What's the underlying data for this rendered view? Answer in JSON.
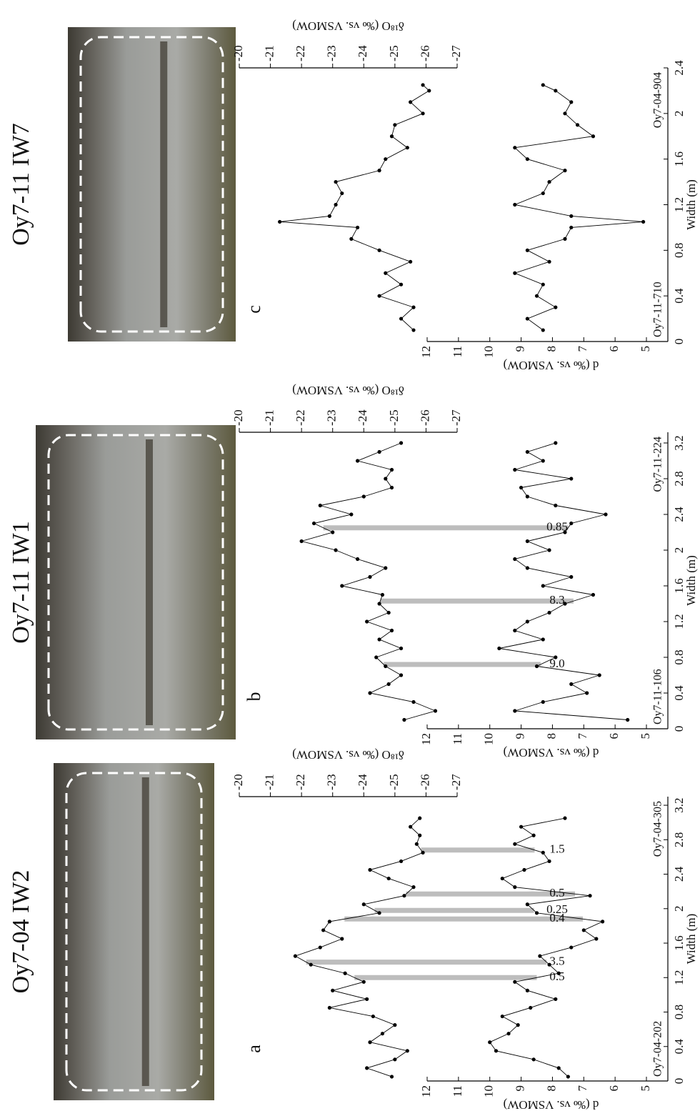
{
  "chart_data": [
    {
      "type": "line",
      "title": "Oy7-04 IW2",
      "panel_label": "a",
      "xlabel": "Width (m)",
      "ylabel": "d (‰ vs. VSMOW)",
      "y2label": "δ¹⁸O (‰ vs. VSMOW)",
      "xlim": [
        0,
        3.3
      ],
      "xticks": [
        0,
        0.4,
        0.8,
        1.2,
        1.6,
        2,
        2.4,
        2.8,
        3.2
      ],
      "ylim": [
        5,
        12
      ],
      "yticks": [
        5,
        6,
        7,
        8,
        9,
        10,
        11,
        12
      ],
      "y2lim": [
        -27,
        -20
      ],
      "y2ticks": [
        -20,
        -21,
        -22,
        -23,
        -24,
        -25,
        -26,
        -27
      ],
      "x": [
        0.05,
        0.15,
        0.25,
        0.35,
        0.45,
        0.55,
        0.65,
        0.75,
        0.85,
        0.95,
        1.05,
        1.15,
        1.25,
        1.35,
        1.45,
        1.55,
        1.65,
        1.75,
        1.85,
        1.95,
        2.05,
        2.15,
        2.25,
        2.35,
        2.45,
        2.55,
        2.65,
        2.75,
        2.85,
        2.95,
        3.05
      ],
      "series": [
        {
          "color": "#000000",
          "values": [
            7.5,
            7.8,
            8.6,
            9.8,
            10.0,
            9.4,
            9.1,
            9.6,
            8.7,
            7.9,
            8.8,
            9.2,
            7.8,
            8.1,
            8.4,
            7.4,
            6.6,
            7.0,
            6.4,
            8.5,
            8.8,
            6.8,
            9.2,
            9.6,
            8.9,
            8.1,
            8.3,
            9.2,
            8.6,
            9.0,
            7.6
          ]
        },
        {
          "color": "#000000",
          "axis": "y2",
          "values": [
            -24.9,
            -24.1,
            -25.0,
            -25.4,
            -24.2,
            -24.6,
            -25.0,
            -24.3,
            -22.9,
            -24.1,
            -23.0,
            -24.0,
            -23.4,
            -22.3,
            -21.8,
            -22.6,
            -23.3,
            -22.7,
            -22.9,
            -24.5,
            -24.0,
            -25.3,
            -25.6,
            -24.8,
            -24.2,
            -25.2,
            -25.9,
            -25.7,
            -25.8,
            -25.5,
            -25.8
          ]
        }
      ],
      "sample_labels": [
        "Oy7-04-202",
        "Oy7-04-305"
      ],
      "annotations": [
        {
          "x": 1.2,
          "label": "0.5"
        },
        {
          "x": 1.38,
          "label": "3.5"
        },
        {
          "x": 1.88,
          "label": "0.4"
        },
        {
          "x": 1.98,
          "label": "0.25"
        },
        {
          "x": 2.17,
          "label": "0.5"
        },
        {
          "x": 2.68,
          "label": "1.5"
        }
      ]
    },
    {
      "type": "line",
      "title": "Oy7-11 IW1",
      "panel_label": "b",
      "xlabel": "Width (m)",
      "ylabel": "d (‰ vs. VSMOW)",
      "y2label": "δ¹⁸O (‰ vs. VSMOW)",
      "xlim": [
        0,
        3.32
      ],
      "xticks": [
        0,
        0.4,
        0.8,
        1.2,
        1.6,
        2,
        2.4,
        2.8,
        3.2
      ],
      "ylim": [
        5,
        12
      ],
      "yticks": [
        5,
        6,
        7,
        8,
        9,
        10,
        11,
        12
      ],
      "y2lim": [
        -27,
        -20
      ],
      "y2ticks": [
        -20,
        -21,
        -22,
        -23,
        -24,
        -25,
        -26,
        -27
      ],
      "x": [
        0.1,
        0.2,
        0.3,
        0.4,
        0.5,
        0.6,
        0.7,
        0.8,
        0.9,
        1.0,
        1.1,
        1.2,
        1.3,
        1.4,
        1.5,
        1.6,
        1.7,
        1.8,
        1.9,
        2.0,
        2.1,
        2.2,
        2.3,
        2.4,
        2.5,
        2.6,
        2.7,
        2.8,
        2.9,
        3.0,
        3.1,
        3.2
      ],
      "series": [
        {
          "color": "#000000",
          "values": [
            5.6,
            9.2,
            8.3,
            6.9,
            7.4,
            6.5,
            8.5,
            7.9,
            9.7,
            8.3,
            9.2,
            8.8,
            8.1,
            7.6,
            6.7,
            8.3,
            7.4,
            8.8,
            9.2,
            8.1,
            8.8,
            7.6,
            7.4,
            6.3,
            7.9,
            8.8,
            9.0,
            7.4,
            9.2,
            8.3,
            8.8,
            7.9
          ]
        },
        {
          "color": "#000000",
          "axis": "y2",
          "values": [
            -25.3,
            -26.3,
            -25.6,
            -24.2,
            -24.8,
            -25.2,
            -24.7,
            -24.4,
            -25.2,
            -24.5,
            -24.9,
            -24.1,
            -24.8,
            -24.5,
            -24.6,
            -23.3,
            -24.2,
            -24.7,
            -23.8,
            -23.1,
            -22.0,
            -23.0,
            -22.4,
            -23.6,
            -22.6,
            -24.0,
            -24.9,
            -24.7,
            -24.9,
            -23.8,
            -24.5,
            -25.2
          ]
        }
      ],
      "sample_labels": [
        "Oy7-11-106",
        "Oy7-11-224"
      ],
      "annotations": [
        {
          "x": 0.72,
          "label": "9.0"
        },
        {
          "x": 1.43,
          "label": "8.3"
        },
        {
          "x": 2.25,
          "label": "0.85"
        }
      ]
    },
    {
      "type": "line",
      "title": "Oy7-11 IW7",
      "panel_label": "c",
      "xlabel": "Width (m)",
      "ylabel": "d (‰ vs. VSMOW)",
      "y2label": "δ¹⁸O (‰ vs. VSMOW)",
      "xlim": [
        0,
        2.4
      ],
      "xticks": [
        0,
        0.4,
        0.8,
        1.2,
        1.6,
        2,
        2.4
      ],
      "ylim": [
        5,
        12
      ],
      "yticks": [
        5,
        6,
        7,
        8,
        9,
        10,
        11,
        12
      ],
      "y2lim": [
        -27,
        -20
      ],
      "y2ticks": [
        -20,
        -21,
        -22,
        -23,
        -24,
        -25,
        -26,
        -27
      ],
      "x": [
        0.1,
        0.2,
        0.3,
        0.4,
        0.5,
        0.6,
        0.7,
        0.8,
        0.9,
        1.0,
        1.05,
        1.1,
        1.2,
        1.3,
        1.4,
        1.5,
        1.6,
        1.7,
        1.8,
        1.9,
        2.0,
        2.1,
        2.2,
        2.25
      ],
      "series": [
        {
          "color": "#000000",
          "values": [
            8.3,
            8.8,
            7.9,
            8.5,
            8.3,
            9.2,
            8.1,
            8.8,
            7.6,
            7.4,
            5.1,
            7.4,
            9.2,
            8.3,
            8.1,
            7.6,
            8.8,
            9.2,
            6.7,
            7.2,
            7.6,
            7.4,
            7.9,
            8.3
          ]
        },
        {
          "color": "#000000",
          "axis": "y2",
          "values": [
            -25.6,
            -25.2,
            -25.6,
            -24.5,
            -25.2,
            -24.7,
            -25.5,
            -24.5,
            -23.6,
            -23.8,
            -21.3,
            -22.9,
            -23.1,
            -23.3,
            -23.1,
            -24.5,
            -24.7,
            -25.4,
            -24.9,
            -25.0,
            -25.9,
            -25.5,
            -26.1,
            -25.9
          ]
        }
      ],
      "sample_labels": [
        "Oy7-11-710",
        "Oy7-04-904"
      ],
      "annotations": []
    }
  ]
}
